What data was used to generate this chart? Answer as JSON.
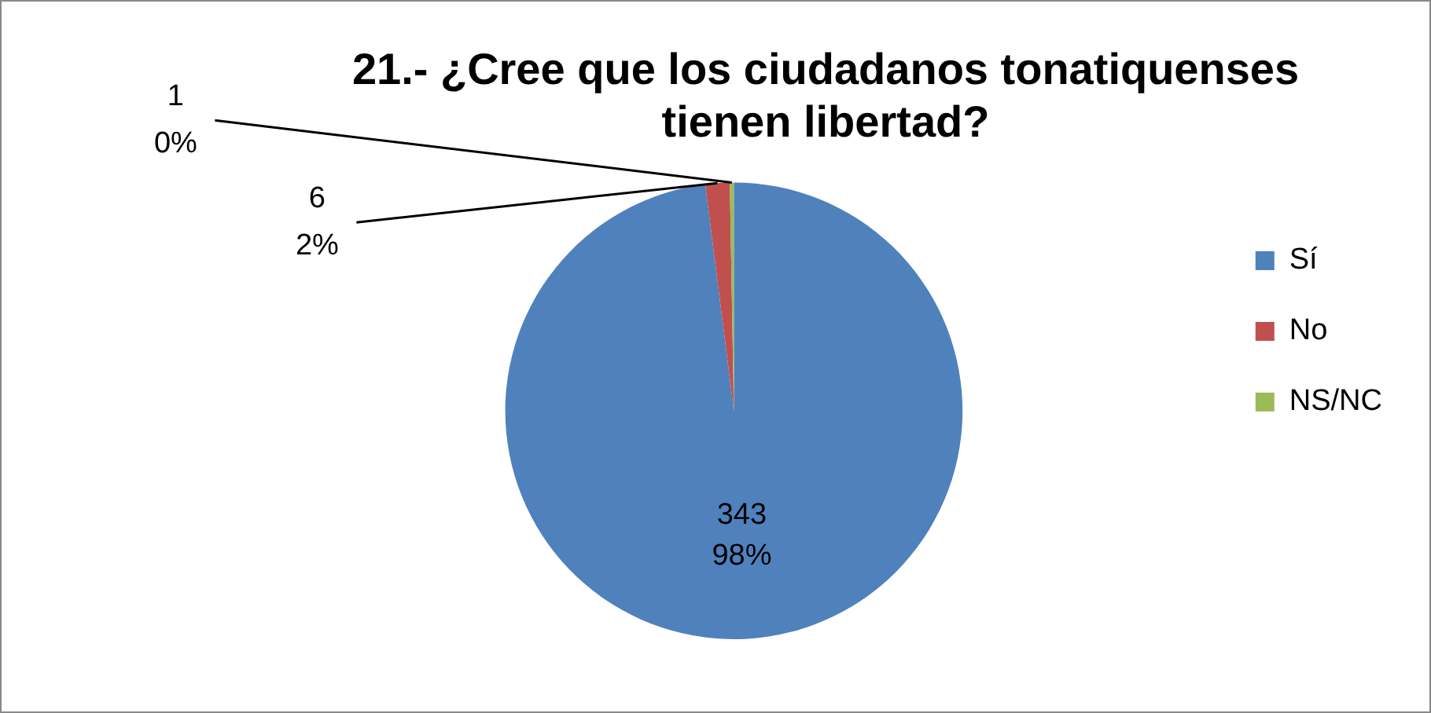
{
  "chart_data": {
    "type": "pie",
    "title": "21.- ¿Cree que los ciudadanos tonatiquenses tienen libertad?",
    "categories": [
      "Sí",
      "No",
      "NS/NC"
    ],
    "values": [
      343,
      6,
      1
    ],
    "colors": [
      "#4f81bd",
      "#c0504d",
      "#9bbb59"
    ],
    "value_labels": [
      "343\n98%",
      "6\n2%",
      "1\n0%"
    ],
    "legend": "right"
  }
}
